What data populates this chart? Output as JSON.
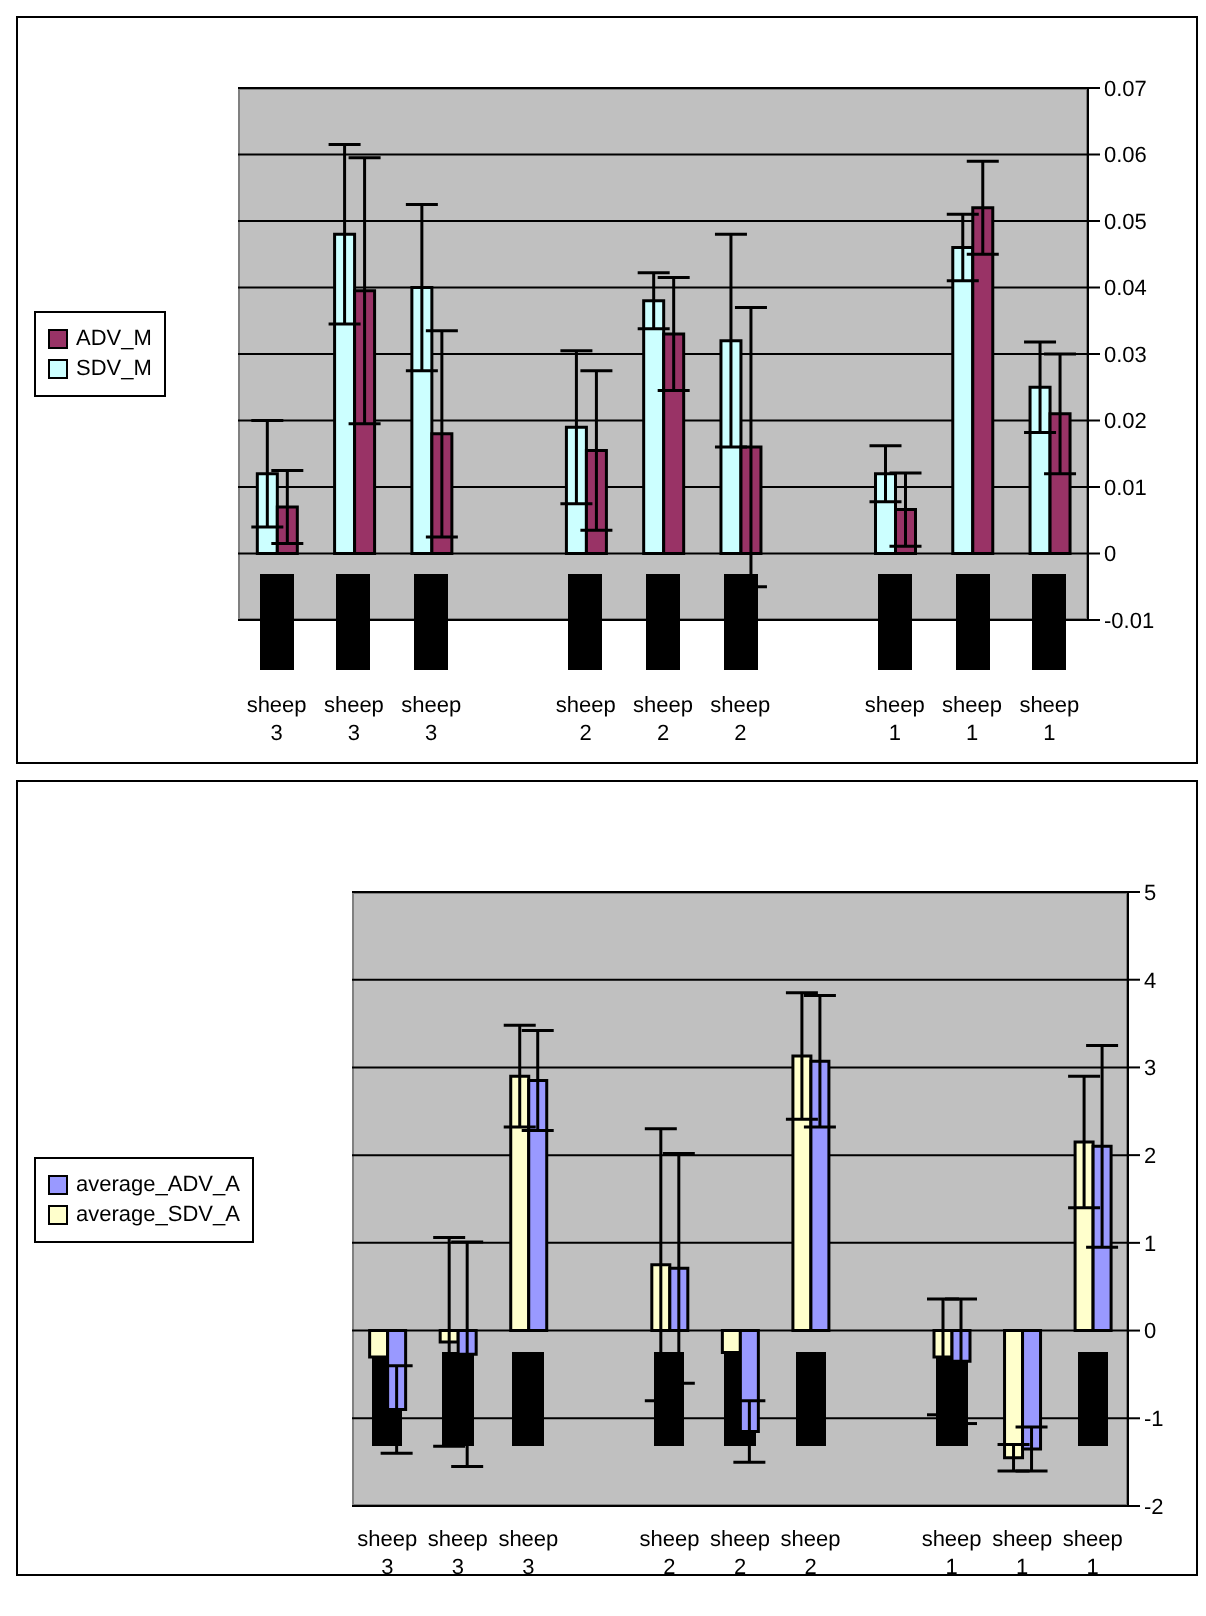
{
  "chart_data": [
    {
      "type": "bar",
      "categories": [
        "sheep 3",
        "sheep 3",
        "sheep 3",
        null,
        "sheep 2",
        "sheep 2",
        "sheep 2",
        null,
        "sheep 1",
        "sheep 1",
        "sheep 1"
      ],
      "series": [
        {
          "name": "SDV_M",
          "color": "#ccffff",
          "values": [
            0.012,
            0.048,
            0.04,
            null,
            0.019,
            0.038,
            0.032,
            null,
            0.012,
            0.046,
            0.025
          ],
          "errors": [
            0.008,
            0.0135,
            0.0125,
            null,
            0.0115,
            0.0042,
            0.016,
            null,
            0.0042,
            0.005,
            0.0068
          ]
        },
        {
          "name": "ADV_M",
          "color": "#993366",
          "values": [
            0.007,
            0.0395,
            0.018,
            null,
            0.0155,
            0.033,
            0.016,
            null,
            0.0066,
            0.052,
            0.021
          ],
          "errors": [
            0.0055,
            0.02,
            0.0155,
            null,
            0.012,
            0.0085,
            0.021,
            null,
            0.0055,
            0.007,
            0.009
          ]
        }
      ],
      "ylim": [
        -0.01,
        0.07
      ],
      "yticks": [
        -0.01,
        0,
        0.01,
        0.02,
        0.03,
        0.04,
        0.05,
        0.06,
        0.07
      ],
      "grid": "y",
      "legend": "left"
    },
    {
      "type": "bar",
      "categories": [
        "sheep 3",
        "sheep 3",
        "sheep 3",
        null,
        "sheep 2",
        "sheep 2",
        "sheep 2",
        null,
        "sheep 1",
        "sheep 1",
        "sheep 1"
      ],
      "series": [
        {
          "name": "average_SDV_A",
          "color": "#ffffcc",
          "values": [
            -0.3,
            -0.13,
            2.9,
            null,
            0.75,
            -0.25,
            3.13,
            null,
            -0.3,
            -1.45,
            2.15
          ],
          "errors": [
            null,
            1.19,
            0.58,
            null,
            1.55,
            null,
            0.72,
            null,
            0.66,
            0.15,
            0.75
          ]
        },
        {
          "name": "average_ADV_A",
          "color": "#9999ff",
          "values": [
            -0.9,
            -0.27,
            2.85,
            null,
            0.71,
            -1.15,
            3.07,
            null,
            -0.35,
            -1.35,
            2.1
          ],
          "errors": [
            0.5,
            1.28,
            0.57,
            null,
            1.31,
            0.35,
            0.75,
            null,
            0.71,
            0.25,
            1.15
          ]
        }
      ],
      "ylim": [
        -2,
        5
      ],
      "yticks": [
        -2,
        -1,
        0,
        1,
        2,
        3,
        4,
        5
      ],
      "grid": "y",
      "legend": "left"
    }
  ]
}
